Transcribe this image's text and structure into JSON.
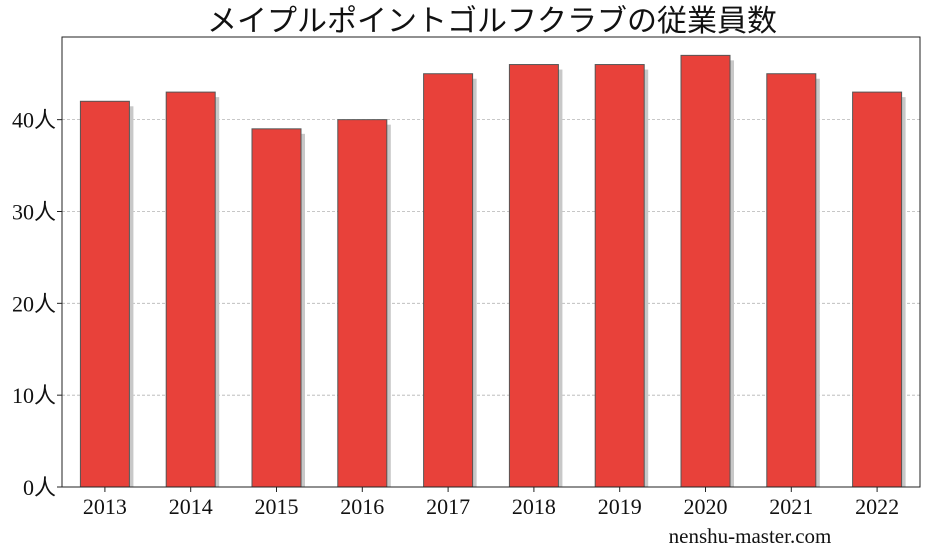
{
  "chart_data": {
    "type": "bar",
    "title": "メイプルポイントゴルフクラブの従業員数",
    "categories": [
      "2013",
      "2014",
      "2015",
      "2016",
      "2017",
      "2018",
      "2019",
      "2020",
      "2021",
      "2022"
    ],
    "series": [
      {
        "values": [
          42,
          43,
          39,
          40,
          45,
          46,
          46,
          47,
          45,
          43
        ]
      }
    ],
    "y_ticks": [
      "0人",
      "10人",
      "20人",
      "30人",
      "40人"
    ],
    "y_tick_values": [
      0,
      10,
      20,
      30,
      40
    ],
    "ylim": [
      0,
      49
    ],
    "grid": true,
    "bar_color": "#e8413a",
    "bar_edge_color": "#555555",
    "shadow_color": "#c8c8c8"
  },
  "watermark": "nenshu-master.com"
}
